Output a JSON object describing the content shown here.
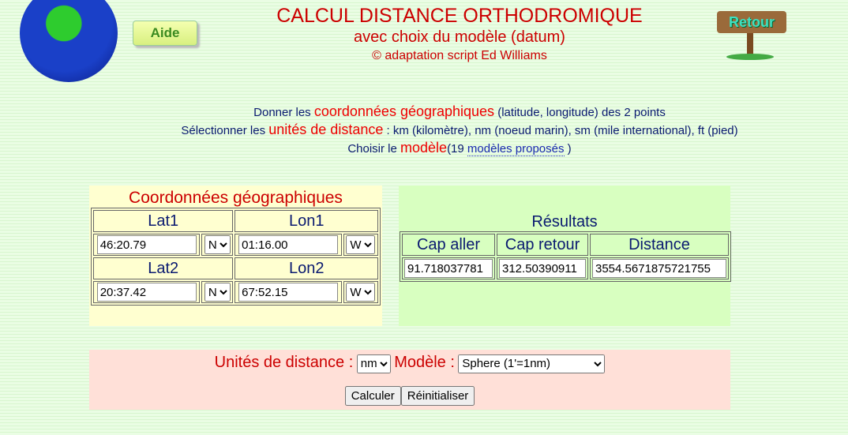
{
  "header": {
    "title": "CALCUL DISTANCE ORTHODROMIQUE",
    "subtitle": "avec choix du modèle (datum)",
    "credit": "© adaptation script Ed Williams",
    "help_button": "Aide",
    "back_button": "Retour"
  },
  "intro": {
    "line1": {
      "a": "Donner les ",
      "b": "coordonnées géographiques",
      "c": " (latitude, longitude) des 2 points"
    },
    "line2": {
      "a": "Sélectionner les ",
      "b": "unités de distance",
      "c": " : km (kilomètre), nm (noeud marin), sm (mile international), ft (pied)"
    },
    "line3": {
      "a": "Choisir le ",
      "b": "modèle",
      "c": "(19 ",
      "link": "modèles proposés",
      "d": " )"
    }
  },
  "coords": {
    "title": "Coordonnées géographiques",
    "lat1_label": "Lat1",
    "lon1_label": "Lon1",
    "lat2_label": "Lat2",
    "lon2_label": "Lon2",
    "lat1": "46:20.79",
    "lat1_hem": "N",
    "lon1": "01:16.00",
    "lon1_hem": "W",
    "lat2": "20:37.42",
    "lat2_hem": "N",
    "lon2": "67:52.15",
    "lon2_hem": "W"
  },
  "results": {
    "title": "Résultats",
    "cap_aller_label": "Cap aller",
    "cap_retour_label": "Cap retour",
    "distance_label": "Distance",
    "cap_aller": "91.718037781",
    "cap_retour": "312.50390911",
    "distance": "3554.5671875721755"
  },
  "options": {
    "units_label": "Unités de distance :",
    "units": "nm",
    "model_label": "Modèle :",
    "model": "Sphere (1'=1nm)",
    "calc_button": "Calculer",
    "reset_button": "Réinitialiser"
  }
}
